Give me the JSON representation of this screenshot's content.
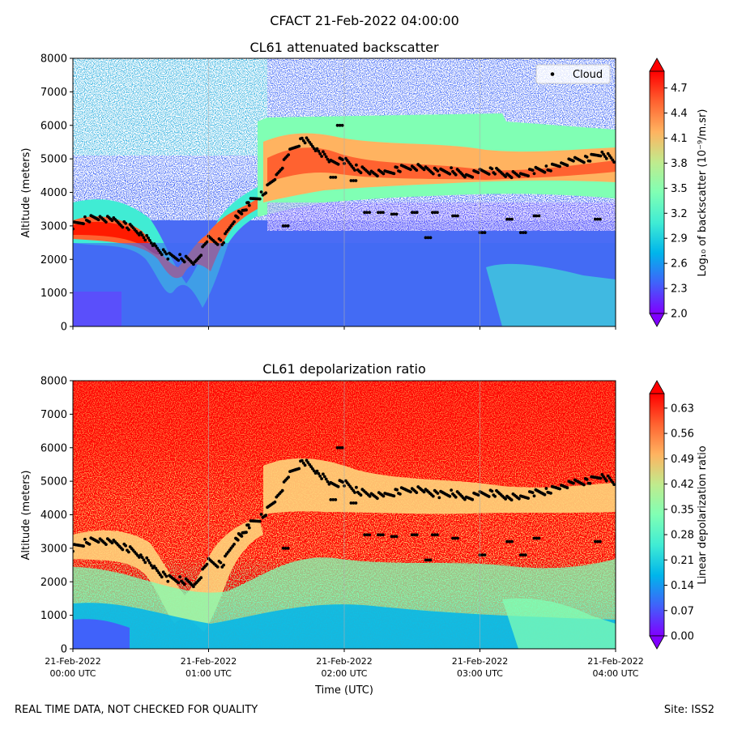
{
  "figure": {
    "suptitle": "CFACT 21-Feb-2022 04:00:00",
    "footer_left": "REAL TIME DATA, NOT CHECKED FOR QUALITY",
    "footer_right": "Site: ISS2",
    "xlabel": "Time (UTC)",
    "x_ticks": [
      {
        "line1": "21-Feb-2022",
        "line2": "00:00 UTC",
        "hour": 0
      },
      {
        "line1": "21-Feb-2022",
        "line2": "01:00 UTC",
        "hour": 1
      },
      {
        "line1": "21-Feb-2022",
        "line2": "02:00 UTC",
        "hour": 2
      },
      {
        "line1": "21-Feb-2022",
        "line2": "03:00 UTC",
        "hour": 3
      },
      {
        "line1": "21-Feb-2022",
        "line2": "04:00 UTC",
        "hour": 4
      }
    ]
  },
  "colors": {
    "rainbow": [
      "#8000ff",
      "#4062fa",
      "#00b5eb",
      "#40ecd4",
      "#80ffb4",
      "#c0eb8d",
      "#ffb360",
      "#ff6230",
      "#ff0000"
    ],
    "cloud_marker": "#000000",
    "grid": "#b0b0b0"
  },
  "chart_data": [
    {
      "type": "heatmap",
      "id": "backscatter",
      "title": "CL61 attenuated backscatter",
      "ylabel": "Altitude (meters)",
      "colorbar_label": "Log₁₀ of backscatter (10⁻⁹/m.sr)",
      "colorbar_range": [
        2.0,
        4.9
      ],
      "colorbar_ticks": [
        "2.0",
        "2.3",
        "2.6",
        "2.9",
        "3.2",
        "3.5",
        "3.8",
        "4.1",
        "4.4",
        "4.7"
      ],
      "colorbar_tick_values": [
        2.0,
        2.3,
        2.6,
        2.9,
        3.2,
        3.5,
        3.8,
        4.1,
        4.4,
        4.7
      ],
      "xlim_hours": [
        0,
        4
      ],
      "ylim": [
        0,
        8000
      ],
      "y_ticks": [
        0,
        1000,
        2000,
        3000,
        4000,
        5000,
        6000,
        7000,
        8000
      ],
      "legend": {
        "label": "Cloud",
        "location": "upper right"
      },
      "show_x_tick_labels": false
    },
    {
      "type": "heatmap",
      "id": "depolarization",
      "title": "CL61 depolarization ratio",
      "ylabel": "Altitude (meters)",
      "colorbar_label": "Linear depolarization ratio",
      "colorbar_range": [
        0.0,
        0.67
      ],
      "colorbar_ticks": [
        "0.00",
        "0.07",
        "0.14",
        "0.21",
        "0.28",
        "0.35",
        "0.42",
        "0.49",
        "0.56",
        "0.63"
      ],
      "colorbar_tick_values": [
        0.0,
        0.07,
        0.14,
        0.21,
        0.28,
        0.35,
        0.42,
        0.49,
        0.56,
        0.63
      ],
      "xlim_hours": [
        0,
        4
      ],
      "ylim": [
        0,
        8000
      ],
      "y_ticks": [
        0,
        1000,
        2000,
        3000,
        4000,
        5000,
        6000,
        7000,
        8000
      ],
      "show_x_tick_labels": true
    }
  ],
  "cloud_base": {
    "series_name": "Cloud",
    "hours": [
      0.0,
      0.1,
      0.2,
      0.3,
      0.4,
      0.5,
      0.6,
      0.7,
      0.8,
      0.9,
      1.0,
      1.1,
      1.2,
      1.25,
      1.3,
      1.4,
      1.5,
      1.6,
      1.7,
      1.8,
      1.9,
      2.0,
      2.1,
      2.2,
      2.3,
      2.4,
      2.5,
      2.6,
      2.7,
      2.8,
      2.9,
      3.0,
      3.1,
      3.2,
      3.3,
      3.4,
      3.5,
      3.6,
      3.7,
      3.8,
      3.9,
      4.0
    ],
    "altitudes_m": [
      3000,
      3200,
      3250,
      3150,
      3000,
      2800,
      2400,
      2100,
      2050,
      1900,
      2600,
      2500,
      3300,
      3400,
      3700,
      3950,
      4500,
      5200,
      5600,
      5300,
      4900,
      4950,
      4700,
      4600,
      4550,
      4700,
      4780,
      4700,
      4600,
      4650,
      4500,
      4600,
      4650,
      4550,
      4500,
      4650,
      4700,
      4850,
      4950,
      5000,
      5200,
      4900
    ],
    "scattered_hours": [
      1.55,
      1.9,
      2.05,
      2.25,
      2.35,
      2.5,
      2.65,
      2.8,
      3.0,
      3.2,
      3.4,
      3.85,
      2.6,
      3.3,
      1.95,
      2.15
    ],
    "scattered_altitudes_m": [
      3000,
      4450,
      4350,
      3400,
      3350,
      3400,
      3400,
      3300,
      2800,
      3200,
      3300,
      3200,
      2650,
      2800,
      6000,
      3400
    ]
  }
}
